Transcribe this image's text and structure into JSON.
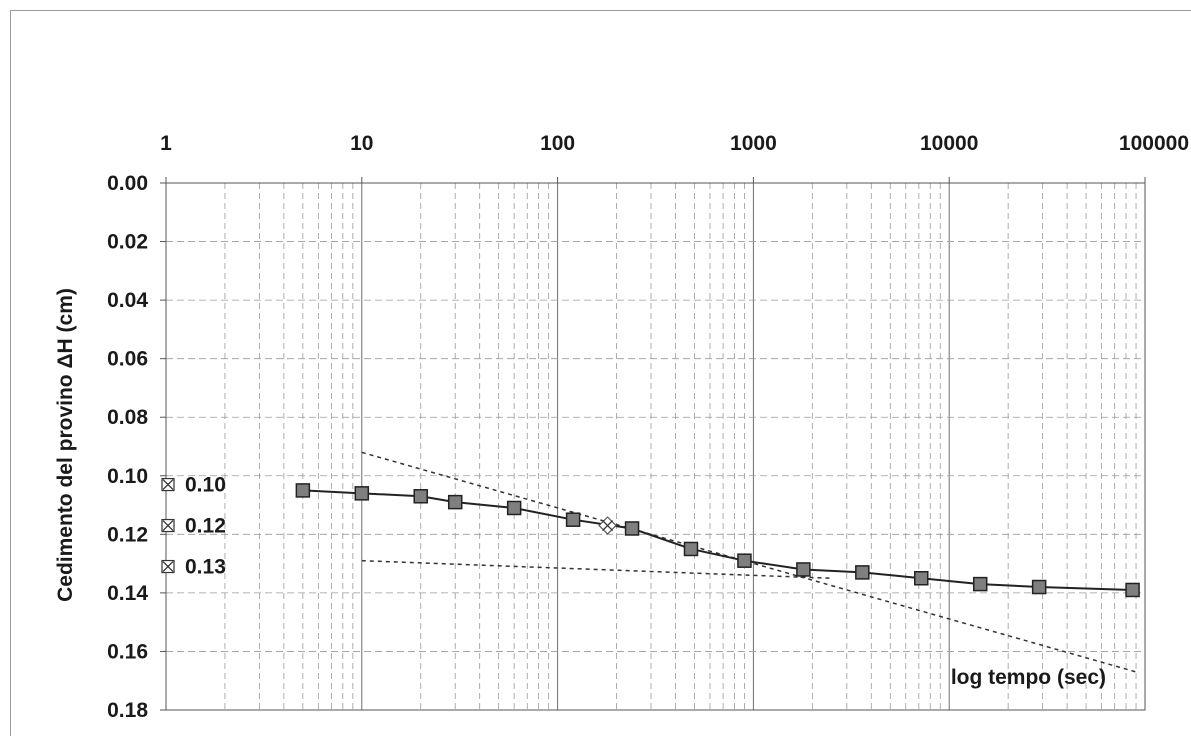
{
  "chart_data": {
    "type": "scatter",
    "title": "",
    "xlabel": "log tempo (sec)",
    "ylabel": "Cedimento del provino ΔH (cm)",
    "x_scale": "log",
    "xlim": [
      1,
      100000
    ],
    "ylim": [
      0.0,
      0.18
    ],
    "y_inverted": true,
    "x_ticks": [
      "1",
      "10",
      "100",
      "1000",
      "10000",
      "100000"
    ],
    "y_ticks": [
      "0.00",
      "0.02",
      "0.04",
      "0.06",
      "0.08",
      "0.10",
      "0.12",
      "0.14",
      "0.16",
      "0.18"
    ],
    "grid": true,
    "series": [
      {
        "marker": "square",
        "color": "#7f7f7f",
        "x": [
          5,
          10,
          20,
          30,
          60,
          120,
          240,
          480,
          900,
          1800,
          3600,
          7200,
          14400,
          28800,
          86400
        ],
        "y": [
          0.105,
          0.106,
          0.107,
          0.109,
          0.111,
          0.115,
          0.118,
          0.125,
          0.129,
          0.132,
          0.133,
          0.135,
          0.137,
          0.138,
          0.139
        ]
      }
    ],
    "highlight_point": {
      "x": 180,
      "y": 0.117
    },
    "tangent_lines": [
      {
        "from": [
          10,
          0.092
        ],
        "to": [
          90000,
          0.167
        ]
      },
      {
        "from": [
          10,
          0.129
        ],
        "to": [
          2500,
          0.135
        ]
      }
    ],
    "annotations": [
      {
        "label": "0.10",
        "y": 0.103
      },
      {
        "label": "0.12",
        "y": 0.117
      },
      {
        "label": "0.13",
        "y": 0.131
      }
    ]
  }
}
